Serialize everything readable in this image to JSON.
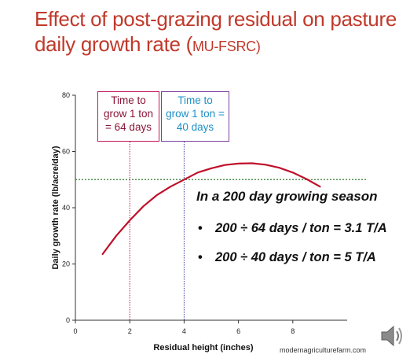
{
  "slide": {
    "title_main": "Effect of post-grazing residual on pasture daily growth rate (",
    "title_small": "MU-FSRC",
    "title_close": ")",
    "note": {
      "heading": "In a 200 day growing season",
      "bullet_symbol": "•",
      "bullet_1": "200 ÷ 64 days / ton = 3.1 T/A",
      "bullet_2": "200 ÷ 40 days / ton = 5 T/A"
    },
    "boxes": {
      "red": [
        "Time to",
        "grow 1 ton",
        "= 64 days"
      ],
      "blue": [
        "Time to",
        "grow 1 ton =",
        "40 days"
      ]
    },
    "watermark": "modernagriculturefarm.com",
    "speaker_icon": "speaker-icon"
  },
  "colors": {
    "title": "#c0392b",
    "curve": "#c0102a",
    "red_box_border": "#c2185b",
    "red_box_text": "#8b1538",
    "blue_box_border": "#7b3fa0",
    "blue_box_text": "#1e90c8",
    "reference_line": "#2e7d32",
    "red_vline": "#c2185b",
    "blue_vline": "#3f3fa0"
  },
  "chart_data": {
    "type": "line",
    "xlabel": "Residual height (inches)",
    "ylabel": "Daily growth rate (lb/acre/day)",
    "xlim": [
      0,
      10
    ],
    "ylim": [
      0,
      80
    ],
    "xticks": [
      0,
      2,
      4,
      6,
      8
    ],
    "yticks": [
      0,
      20,
      40,
      60,
      80
    ],
    "series": [
      {
        "x": [
          1,
          1.5,
          2,
          2.5,
          3,
          3.5,
          4,
          4.5,
          5,
          5.5,
          6,
          6.5,
          7,
          7.5,
          8,
          8.5,
          9
        ],
        "values": [
          23.5,
          30,
          35.5,
          40.5,
          44.5,
          47.5,
          50,
          52.5,
          54,
          55.2,
          55.7,
          55.8,
          55.3,
          54.2,
          52.5,
          50.2,
          47.5
        ]
      }
    ],
    "reference_line_y": 50,
    "vertical_markers": [
      2,
      4
    ],
    "grid": false,
    "legend": "none"
  }
}
